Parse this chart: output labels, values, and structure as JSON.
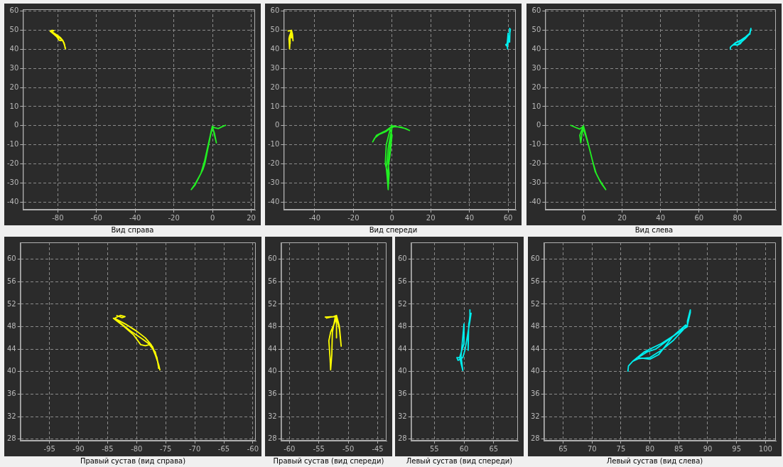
{
  "chart_data": [
    {
      "type": "line",
      "xlabel": "Вид справа",
      "xlim": [
        -98,
        22
      ],
      "ylim": [
        -44,
        61
      ],
      "xticks": [
        -80,
        -60,
        -40,
        -20,
        0,
        20
      ],
      "yticks": [
        -40,
        -30,
        -20,
        -10,
        0,
        10,
        20,
        30,
        40,
        50,
        60
      ],
      "grid": true,
      "marker": "none",
      "series": [
        {
          "color": "#ffff00",
          "x": [
            -83.5,
            -82.5,
            -82,
            -82.8,
            -83.8,
            -82,
            -80,
            -78.5,
            -77.5,
            -76.8,
            -76.2,
            -76,
            -76.3,
            -76.8,
            -77.8,
            -78.5,
            -79.3,
            -80.5,
            -82.5,
            -84,
            -83.5,
            -81,
            -79,
            -77.3,
            -76.5,
            -76.2
          ],
          "values": [
            50,
            49.6,
            49.8,
            50,
            49.5,
            48.5,
            47.2,
            46,
            44.8,
            43,
            41.2,
            40.3,
            41.5,
            43.5,
            44.8,
            44.6,
            44.8,
            46.5,
            48.3,
            49.5,
            49.2,
            47.2,
            45.8,
            44.5,
            42.5,
            40.5
          ]
        },
        {
          "color": "#22ee22",
          "x": [
            7,
            5,
            3,
            1,
            0,
            1,
            2,
            1,
            0,
            -1,
            -2,
            -3,
            -4,
            -5,
            -7,
            -9,
            -11,
            -9,
            -6,
            -4,
            -2,
            -0.5,
            0
          ],
          "values": [
            0.3,
            -0.5,
            -1.5,
            -1,
            -0.3,
            -5,
            -9,
            -4,
            -1,
            -5,
            -10,
            -15,
            -20,
            -23,
            -27,
            -31,
            -33.5,
            -30.5,
            -25,
            -18,
            -9,
            -2,
            0
          ]
        }
      ]
    },
    {
      "type": "line",
      "xlabel": "Вид спереди",
      "xlim": [
        -56,
        64
      ],
      "ylim": [
        -44,
        61
      ],
      "xticks": [
        -40,
        -20,
        0,
        20,
        40,
        60
      ],
      "yticks": [
        -40,
        -30,
        -20,
        -10,
        0,
        10,
        20,
        30,
        40,
        50,
        60
      ],
      "grid": true,
      "marker": "none",
      "series": [
        {
          "color": "#ffff00",
          "x": [
            -54,
            -52.5,
            -52,
            -51.5,
            -51.2,
            -51.5,
            -52,
            -52,
            -52,
            -53,
            -53.3,
            -53.1,
            -53,
            -52.8,
            -52.7,
            -52.2,
            -53,
            -53.8
          ],
          "values": [
            49.7,
            49.8,
            50,
            48,
            44.5,
            47.5,
            49.8,
            46,
            49.5,
            47,
            45.5,
            42.5,
            40.3,
            43,
            47,
            49.8,
            49.7,
            49.5
          ]
        },
        {
          "color": "#00eeee",
          "x": [
            61,
            61,
            60.8,
            60.7,
            60.7,
            60.8,
            61.2,
            61,
            60.6,
            60.2,
            59.8,
            59,
            58.8,
            59.3,
            59.5,
            59.8,
            59.7,
            59.5,
            59.7,
            60,
            60,
            59.2
          ],
          "values": [
            51,
            50,
            48,
            46,
            43.8,
            48.5,
            50.4,
            49,
            46.5,
            44,
            42.5,
            42,
            42.5,
            42.5,
            41.5,
            40.2,
            41,
            42.8,
            45,
            48.5,
            45,
            42.3
          ]
        },
        {
          "color": "#22ee22",
          "x": [
            0,
            -1,
            -3,
            -6,
            -8,
            -10,
            -9,
            -6.5,
            -3,
            -1,
            0,
            5,
            7,
            9,
            5,
            1,
            0,
            -1,
            -2,
            -2.5,
            -3,
            -2.5,
            -2,
            -2,
            -1,
            0,
            -1,
            -3,
            -3.5,
            -2,
            -2,
            -1.5,
            -2,
            -1,
            0,
            -0.5
          ],
          "values": [
            0,
            -1,
            -2.5,
            -4,
            -5,
            -8.5,
            -6.5,
            -4.5,
            -3,
            -1.5,
            0,
            -1,
            -1.5,
            -2.5,
            -0.8,
            -0.5,
            -1,
            -6,
            -12,
            -18,
            -22,
            -27,
            -33.5,
            -22,
            -15,
            -5,
            -2,
            -10,
            -20,
            -26,
            -33,
            -25,
            -20,
            -10,
            -0.5,
            0.5
          ]
        }
      ]
    },
    {
      "type": "line",
      "xlabel": "Вид слева",
      "xlim": [
        -20,
        100
      ],
      "ylim": [
        -44,
        61
      ],
      "xticks": [
        0,
        20,
        40,
        60,
        80
      ],
      "yticks": [
        -40,
        -30,
        -20,
        -10,
        0,
        10,
        20,
        30,
        40,
        50,
        60
      ],
      "grid": true,
      "marker": "none",
      "series": [
        {
          "color": "#00eeee",
          "x": [
            76.2,
            76.3,
            77,
            78,
            80,
            82,
            84,
            86,
            86.5,
            87,
            87,
            86.5,
            86.5,
            85,
            83,
            81,
            79.5,
            78,
            80,
            81.5,
            84,
            86.2,
            85,
            82,
            79,
            77
          ],
          "values": [
            40,
            41,
            41.8,
            42.3,
            42.5,
            43.8,
            45.5,
            47.7,
            48.3,
            50.5,
            51,
            49,
            48,
            47,
            45.5,
            44,
            43.5,
            42.5,
            42.2,
            43,
            46.3,
            48.3,
            47,
            45,
            43.5,
            41.8
          ]
        },
        {
          "color": "#22ee22",
          "x": [
            -7,
            -4,
            -2,
            -1,
            0,
            -1,
            -1.5,
            -2,
            -0.5,
            1,
            3,
            5,
            6,
            8,
            11.5,
            9,
            6.5,
            4.5,
            2,
            0
          ],
          "values": [
            0.3,
            -1,
            -1.8,
            -1,
            0,
            -5,
            -9,
            -5,
            -1,
            -5,
            -12,
            -20,
            -24,
            -28,
            -33.5,
            -30,
            -25,
            -18,
            -8,
            -0.5
          ]
        }
      ]
    },
    {
      "type": "line",
      "xlabel": "Правый сустав (вид справа)",
      "xlim": [
        -100,
        -59.5
      ],
      "ylim": [
        27.7,
        63
      ],
      "xticks": [
        -95,
        -90,
        -85,
        -80,
        -75,
        -70,
        -65,
        -60
      ],
      "yticks": [
        28,
        32,
        36,
        40,
        44,
        48,
        52,
        56,
        60
      ],
      "grid": true,
      "marker": "none",
      "series": [
        {
          "color": "#ffff00",
          "x": [
            -83.5,
            -82.5,
            -82,
            -82.8,
            -83.8,
            -82,
            -80,
            -78.5,
            -77.5,
            -76.8,
            -76.2,
            -76,
            -76.3,
            -76.8,
            -77.8,
            -78.5,
            -79.3,
            -80.5,
            -82.5,
            -84,
            -83.5,
            -81,
            -79,
            -77.3,
            -76.5,
            -76.2
          ],
          "values": [
            50,
            49.6,
            49.8,
            50,
            49.5,
            48.5,
            47.2,
            46,
            44.8,
            43,
            41.2,
            40.3,
            41.5,
            43.5,
            44.8,
            44.6,
            44.8,
            46.5,
            48.3,
            49.5,
            49.2,
            47.2,
            45.8,
            44.5,
            42.5,
            40.5
          ]
        }
      ]
    },
    {
      "type": "line",
      "xlabel": "Правый сустав (вид спереди)",
      "xlim": [
        -61.4,
        -43.5
      ],
      "ylim": [
        27.7,
        63
      ],
      "xticks": [
        -60,
        -55,
        -50,
        -45
      ],
      "yticks": [
        28,
        32,
        36,
        40,
        44,
        48,
        52,
        56,
        60
      ],
      "grid": true,
      "marker": "none",
      "series": [
        {
          "color": "#ffff00",
          "x": [
            -54,
            -52.5,
            -52,
            -51.5,
            -51.2,
            -51.5,
            -52,
            -52,
            -52,
            -53,
            -53.3,
            -53.1,
            -53,
            -52.8,
            -52.7,
            -52.2,
            -53,
            -53.8
          ],
          "values": [
            49.7,
            49.8,
            50,
            48,
            44.5,
            47.5,
            49.8,
            46,
            49.5,
            47,
            45.5,
            42.5,
            40.3,
            43,
            47,
            49.8,
            49.7,
            49.5
          ]
        }
      ]
    },
    {
      "type": "line",
      "xlabel": "Левый сустав (вид спереди)",
      "xlim": [
        51.1,
        69.1
      ],
      "ylim": [
        27.7,
        63
      ],
      "xticks": [
        55,
        60,
        65
      ],
      "yticks": [
        28,
        32,
        36,
        40,
        44,
        48,
        52,
        56,
        60
      ],
      "grid": true,
      "marker": "none",
      "series": [
        {
          "color": "#00eeee",
          "x": [
            61,
            61,
            60.8,
            60.7,
            60.7,
            60.8,
            61.2,
            61,
            60.6,
            60.2,
            59.8,
            59,
            58.8,
            59.3,
            59.5,
            59.8,
            59.7,
            59.5,
            59.7,
            60,
            60,
            59.2
          ],
          "values": [
            51,
            50,
            48,
            46,
            43.8,
            48.5,
            50.4,
            49,
            46.5,
            44,
            42.5,
            42,
            42.5,
            42.5,
            41.5,
            40.2,
            41,
            42.8,
            45,
            48.5,
            45,
            42.3
          ]
        }
      ]
    },
    {
      "type": "line",
      "xlabel": "Левый сустав (вид слева)",
      "xlim": [
        61.7,
        101.8
      ],
      "ylim": [
        27.7,
        63
      ],
      "xticks": [
        65,
        70,
        75,
        80,
        85,
        90,
        95,
        100
      ],
      "yticks": [
        28,
        32,
        36,
        40,
        44,
        48,
        52,
        56,
        60
      ],
      "grid": true,
      "marker": "none",
      "series": [
        {
          "color": "#00eeee",
          "x": [
            76.2,
            76.3,
            77,
            78,
            80,
            82,
            84,
            86,
            86.5,
            87,
            87,
            86.5,
            86.5,
            85,
            83,
            81,
            79.5,
            78,
            80,
            81.5,
            84,
            86.2,
            85,
            82,
            79,
            77
          ],
          "values": [
            40,
            41,
            41.8,
            42.3,
            42.5,
            43.8,
            45.5,
            47.7,
            48.3,
            50.5,
            51,
            49,
            48,
            47,
            45.5,
            44,
            43.5,
            42.5,
            42.2,
            43,
            46.3,
            48.3,
            47,
            45,
            43.5,
            41.8
          ]
        }
      ]
    }
  ]
}
